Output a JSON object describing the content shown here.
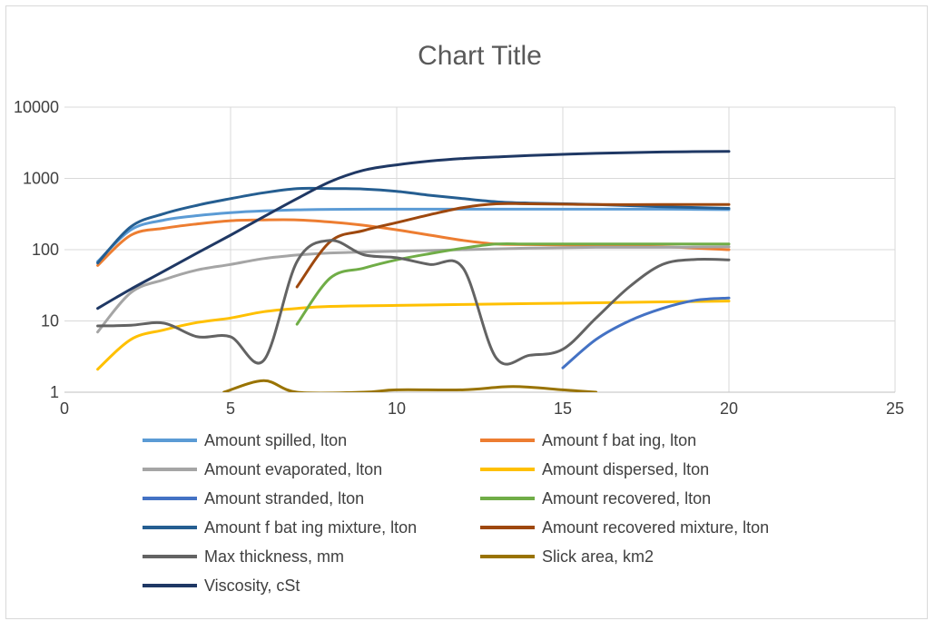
{
  "chart_data": {
    "type": "line",
    "title": "Chart Title",
    "xlabel": "",
    "ylabel": "",
    "y_scale": "log",
    "xlim": [
      0,
      25
    ],
    "ylim": [
      1,
      10000
    ],
    "x_ticks": [
      "0",
      "5",
      "10",
      "15",
      "20",
      "25"
    ],
    "y_ticks": [
      "1",
      "10",
      "100",
      "1000",
      "10000"
    ],
    "grid": true,
    "legend_position": "bottom",
    "series": [
      {
        "name": "Amount spilled, lton",
        "color": "#5b9bd5",
        "points": [
          [
            1,
            68
          ],
          [
            2,
            190
          ],
          [
            3,
            260
          ],
          [
            4,
            300
          ],
          [
            5,
            330
          ],
          [
            6,
            350
          ],
          [
            7,
            362
          ],
          [
            8,
            368
          ],
          [
            10,
            370
          ],
          [
            12,
            370
          ],
          [
            14,
            370
          ],
          [
            16,
            370
          ],
          [
            18,
            370
          ],
          [
            20,
            365
          ]
        ]
      },
      {
        "name": "Amount f bat ing, lton",
        "color": "#ed7d31",
        "points": [
          [
            1,
            60
          ],
          [
            2,
            160
          ],
          [
            3,
            200
          ],
          [
            4,
            230
          ],
          [
            5,
            255
          ],
          [
            6,
            262
          ],
          [
            7,
            262
          ],
          [
            8,
            245
          ],
          [
            9,
            220
          ],
          [
            10,
            190
          ],
          [
            11,
            160
          ],
          [
            12,
            135
          ],
          [
            13,
            120
          ],
          [
            14,
            118
          ],
          [
            16,
            115
          ],
          [
            18,
            110
          ],
          [
            20,
            100
          ]
        ]
      },
      {
        "name": "Amount evaporated, lton",
        "color": "#a5a5a5",
        "points": [
          [
            1,
            7
          ],
          [
            2,
            25
          ],
          [
            3,
            38
          ],
          [
            4,
            52
          ],
          [
            5,
            62
          ],
          [
            6,
            75
          ],
          [
            7,
            84
          ],
          [
            8,
            90
          ],
          [
            10,
            95
          ],
          [
            12,
            100
          ],
          [
            14,
            105
          ],
          [
            16,
            108
          ],
          [
            18,
            108
          ],
          [
            20,
            110
          ]
        ]
      },
      {
        "name": "Amount dispersed, lton",
        "color": "#ffc000",
        "points": [
          [
            1,
            2.1
          ],
          [
            2,
            5.5
          ],
          [
            3,
            7.5
          ],
          [
            4,
            9.5
          ],
          [
            5,
            11
          ],
          [
            6,
            13.5
          ],
          [
            7,
            15
          ],
          [
            8,
            16
          ],
          [
            10,
            16.5
          ],
          [
            12,
            17
          ],
          [
            14,
            17.5
          ],
          [
            16,
            18
          ],
          [
            18,
            18.5
          ],
          [
            20,
            19
          ]
        ]
      },
      {
        "name": "Amount stranded, lton",
        "color": "#4472c4",
        "points": [
          [
            15,
            2.2
          ],
          [
            16,
            5.5
          ],
          [
            17,
            10
          ],
          [
            18,
            15
          ],
          [
            19,
            19.5
          ],
          [
            20,
            21
          ]
        ]
      },
      {
        "name": "Amount recovered, lton",
        "color": "#70ad47",
        "points": [
          [
            7,
            9
          ],
          [
            8,
            40
          ],
          [
            9,
            55
          ],
          [
            10,
            72
          ],
          [
            11,
            88
          ],
          [
            12,
            105
          ],
          [
            13,
            120
          ],
          [
            14,
            120
          ],
          [
            16,
            120
          ],
          [
            18,
            120
          ],
          [
            20,
            120
          ]
        ]
      },
      {
        "name": "Amount f bat ing mixture, lton",
        "color": "#255e91",
        "points": [
          [
            1,
            65
          ],
          [
            2,
            210
          ],
          [
            3,
            320
          ],
          [
            4,
            420
          ],
          [
            5,
            520
          ],
          [
            6,
            630
          ],
          [
            7,
            720
          ],
          [
            8,
            720
          ],
          [
            9,
            710
          ],
          [
            10,
            660
          ],
          [
            11,
            580
          ],
          [
            12,
            520
          ],
          [
            13,
            470
          ],
          [
            14,
            450
          ],
          [
            16,
            430
          ],
          [
            18,
            400
          ],
          [
            20,
            380
          ]
        ]
      },
      {
        "name": "Amount recovered mixture, lton",
        "color": "#9e480e",
        "points": [
          [
            7,
            30
          ],
          [
            8,
            130
          ],
          [
            9,
            185
          ],
          [
            10,
            240
          ],
          [
            11,
            310
          ],
          [
            12,
            390
          ],
          [
            13,
            440
          ],
          [
            14,
            440
          ],
          [
            16,
            430
          ],
          [
            18,
            430
          ],
          [
            20,
            430
          ]
        ]
      },
      {
        "name": "Max thickness, mm",
        "color": "#636363",
        "points": [
          [
            1,
            8.5
          ],
          [
            2,
            8.7
          ],
          [
            3,
            9.3
          ],
          [
            4,
            6
          ],
          [
            5,
            6
          ],
          [
            6,
            2.8
          ],
          [
            7,
            68
          ],
          [
            8,
            135
          ],
          [
            9,
            85
          ],
          [
            10,
            77
          ],
          [
            11,
            62
          ],
          [
            12,
            55
          ],
          [
            13,
            3
          ],
          [
            14,
            3.3
          ],
          [
            15,
            4
          ],
          [
            16,
            11
          ],
          [
            17,
            30
          ],
          [
            18,
            62
          ],
          [
            19,
            73
          ],
          [
            20,
            72
          ]
        ]
      },
      {
        "name": "Slick area, km2",
        "color": "#997300",
        "points": [
          [
            4.8,
            1
          ],
          [
            6,
            1.45
          ],
          [
            7,
            1
          ],
          [
            9,
            1
          ],
          [
            10,
            1.08
          ],
          [
            12,
            1.08
          ],
          [
            13.5,
            1.2
          ],
          [
            15,
            1.08
          ],
          [
            16,
            1
          ]
        ]
      },
      {
        "name": "Viscosity, cSt",
        "color": "#1f3864",
        "points": [
          [
            1,
            15
          ],
          [
            2,
            28
          ],
          [
            3,
            50
          ],
          [
            4,
            90
          ],
          [
            5,
            160
          ],
          [
            6,
            290
          ],
          [
            7,
            520
          ],
          [
            8,
            900
          ],
          [
            9,
            1300
          ],
          [
            10,
            1550
          ],
          [
            11,
            1750
          ],
          [
            12,
            1900
          ],
          [
            13,
            2000
          ],
          [
            14,
            2100
          ],
          [
            16,
            2250
          ],
          [
            18,
            2350
          ],
          [
            20,
            2400
          ]
        ]
      }
    ]
  }
}
